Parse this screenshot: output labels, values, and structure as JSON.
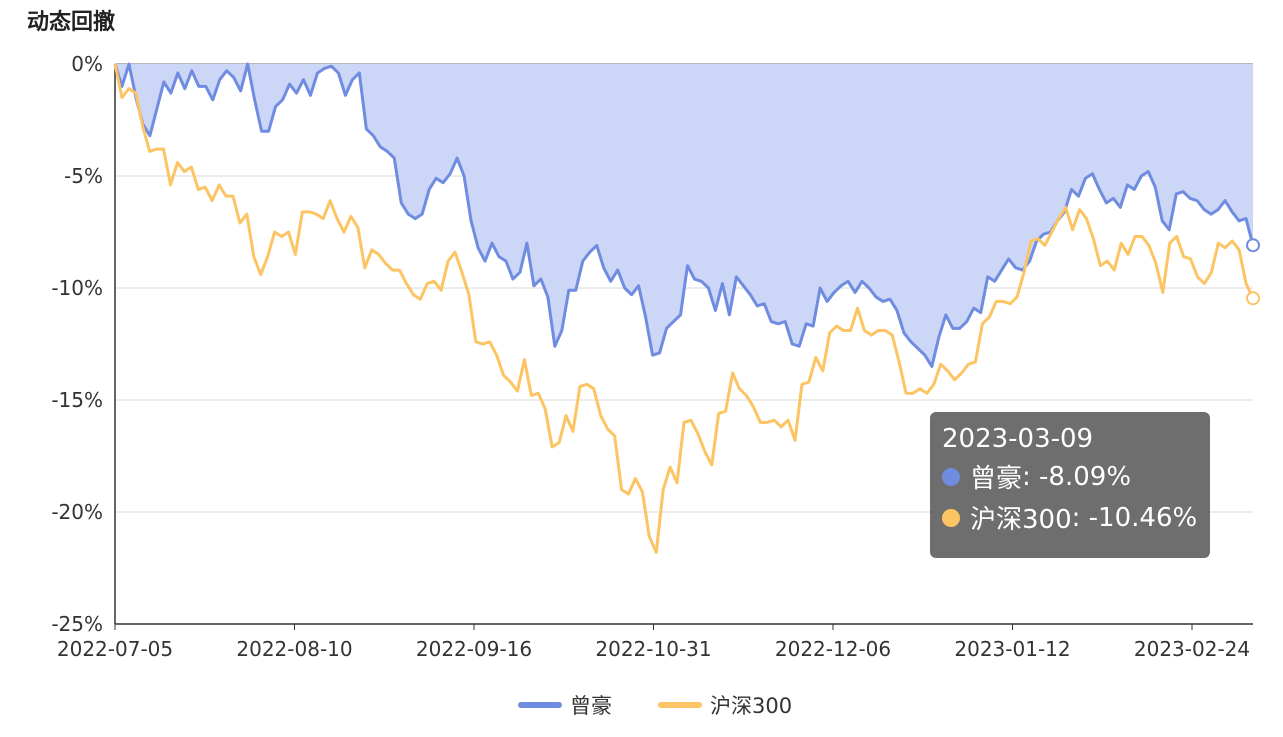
{
  "title": "动态回撤",
  "tooltip": {
    "date": "2023-03-09",
    "rows": [
      {
        "name": "曾豪",
        "value": "-8.09%",
        "color": "#6f8ce0"
      },
      {
        "name": "沪深300",
        "value": "-10.46%",
        "color": "#fcc463"
      }
    ]
  },
  "chart_data": {
    "type": "area",
    "ylim": [
      -25,
      0
    ],
    "yticks": [
      "0%",
      "-5%",
      "-10%",
      "-15%",
      "-20%",
      "-25%"
    ],
    "xticks": [
      "2022-07-05",
      "2022-08-10",
      "2022-09-16",
      "2022-10-31",
      "2022-12-06",
      "2023-01-12",
      "2023-02-24"
    ],
    "legend": [
      "曾豪",
      "沪深300"
    ],
    "legend_position": "bottom",
    "colors": {
      "fund": "#6f8ce0",
      "fund_fill": "#ccd6f6",
      "index": "#fcc463"
    },
    "series": [
      {
        "name": "曾豪",
        "filled": true,
        "values": [
          0.0,
          -1.0,
          0.0,
          -1.5,
          -2.7,
          -3.2,
          -2.0,
          -0.8,
          -1.3,
          -0.4,
          -1.1,
          -0.3,
          -1.0,
          -1.0,
          -1.6,
          -0.7,
          -0.3,
          -0.6,
          -1.2,
          0.0,
          -1.6,
          -3.0,
          -3.0,
          -1.9,
          -1.6,
          -0.9,
          -1.3,
          -0.7,
          -1.4,
          -0.4,
          -0.2,
          -0.1,
          -0.4,
          -1.4,
          -0.7,
          -0.4,
          -2.9,
          -3.2,
          -3.7,
          -3.9,
          -4.2,
          -6.2,
          -6.7,
          -6.9,
          -6.7,
          -5.6,
          -5.1,
          -5.3,
          -4.9,
          -4.2,
          -5.0,
          -7.0,
          -8.2,
          -8.8,
          -8.0,
          -8.6,
          -8.8,
          -9.6,
          -9.3,
          -8.0,
          -9.9,
          -9.6,
          -10.4,
          -12.6,
          -11.9,
          -10.1,
          -10.1,
          -8.8,
          -8.4,
          -8.1,
          -9.1,
          -9.7,
          -9.2,
          -10.0,
          -10.3,
          -9.9,
          -11.3,
          -13.0,
          -12.9,
          -11.8,
          -11.5,
          -11.2,
          -9.0,
          -9.6,
          -9.7,
          -10.0,
          -11.0,
          -9.8,
          -11.2,
          -9.5,
          -9.9,
          -10.3,
          -10.8,
          -10.7,
          -11.5,
          -11.6,
          -11.5,
          -12.5,
          -12.6,
          -11.6,
          -11.7,
          -10.0,
          -10.6,
          -10.2,
          -9.9,
          -9.7,
          -10.2,
          -9.7,
          -10.0,
          -10.4,
          -10.6,
          -10.5,
          -11.0,
          -12.0,
          -12.4,
          -12.7,
          -13.0,
          -13.5,
          -12.2,
          -11.2,
          -11.8,
          -11.8,
          -11.5,
          -10.9,
          -11.1,
          -9.5,
          -9.7,
          -9.2,
          -8.7,
          -9.1,
          -9.2,
          -8.8,
          -7.9,
          -7.6,
          -7.5,
          -7.0,
          -6.6,
          -5.6,
          -5.9,
          -5.1,
          -4.9,
          -5.6,
          -6.2,
          -6.0,
          -6.4,
          -5.4,
          -5.6,
          -5.0,
          -4.8,
          -5.5,
          -7.0,
          -7.4,
          -5.8,
          -5.7,
          -6.0,
          -6.1,
          -6.5,
          -6.7,
          -6.5,
          -6.1,
          -6.6,
          -7.0,
          -6.9,
          -8.09
        ]
      },
      {
        "name": "沪深300",
        "filled": false,
        "values": [
          0.0,
          -1.5,
          -1.1,
          -1.3,
          -2.8,
          -3.9,
          -3.8,
          -3.8,
          -5.4,
          -4.4,
          -4.8,
          -4.6,
          -5.6,
          -5.5,
          -6.1,
          -5.4,
          -5.9,
          -5.9,
          -7.1,
          -6.7,
          -8.6,
          -9.4,
          -8.6,
          -7.5,
          -7.7,
          -7.5,
          -8.5,
          -6.6,
          -6.6,
          -6.7,
          -6.9,
          -6.1,
          -6.9,
          -7.5,
          -6.8,
          -7.3,
          -9.1,
          -8.3,
          -8.5,
          -8.9,
          -9.2,
          -9.2,
          -9.8,
          -10.3,
          -10.5,
          -9.8,
          -9.7,
          -10.1,
          -8.8,
          -8.4,
          -9.3,
          -10.3,
          -12.4,
          -12.5,
          -12.4,
          -13.0,
          -13.9,
          -14.2,
          -14.6,
          -13.2,
          -14.8,
          -14.7,
          -15.4,
          -17.1,
          -16.9,
          -15.7,
          -16.4,
          -14.4,
          -14.3,
          -14.5,
          -15.7,
          -16.3,
          -16.6,
          -19.0,
          -19.2,
          -18.5,
          -19.1,
          -21.1,
          -21.8,
          -19.0,
          -18.0,
          -18.7,
          -16.0,
          -15.9,
          -16.5,
          -17.3,
          -17.9,
          -15.6,
          -15.5,
          -13.8,
          -14.5,
          -14.8,
          -15.3,
          -16.0,
          -16.0,
          -15.9,
          -16.2,
          -15.9,
          -16.8,
          -14.3,
          -14.2,
          -13.1,
          -13.7,
          -12.0,
          -11.7,
          -11.9,
          -11.9,
          -10.9,
          -11.9,
          -12.1,
          -11.9,
          -11.9,
          -12.1,
          -13.3,
          -14.7,
          -14.7,
          -14.5,
          -14.7,
          -14.3,
          -13.4,
          -13.7,
          -14.1,
          -13.8,
          -13.4,
          -13.3,
          -11.6,
          -11.3,
          -10.6,
          -10.6,
          -10.7,
          -10.4,
          -9.3,
          -7.9,
          -7.8,
          -8.1,
          -7.5,
          -6.9,
          -6.4,
          -7.4,
          -6.5,
          -6.9,
          -7.8,
          -9.0,
          -8.8,
          -9.2,
          -8.0,
          -8.5,
          -7.7,
          -7.7,
          -8.1,
          -8.9,
          -10.2,
          -8.0,
          -7.7,
          -8.6,
          -8.7,
          -9.5,
          -9.8,
          -9.3,
          -8.0,
          -8.2,
          -7.9,
          -8.3,
          -9.8,
          -10.46
        ]
      }
    ]
  }
}
